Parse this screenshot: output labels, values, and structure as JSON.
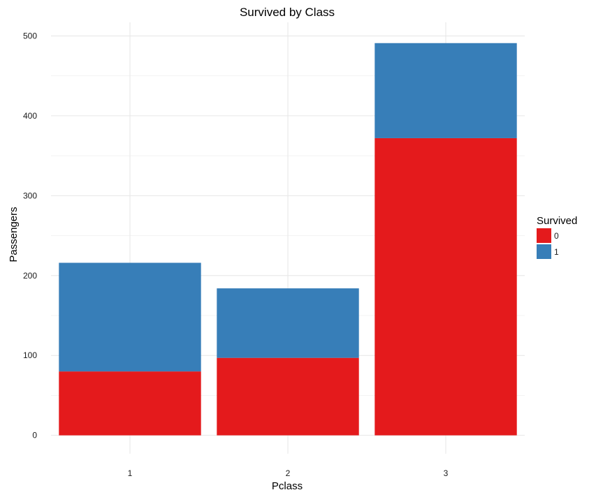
{
  "chart_data": {
    "type": "bar",
    "stacked": true,
    "title": "Survived by Class",
    "xlabel": "Pclass",
    "ylabel": "Passengers",
    "categories": [
      "1",
      "2",
      "3"
    ],
    "series": [
      {
        "name": "0",
        "values": [
          80,
          97,
          372
        ],
        "color": "#E41A1C"
      },
      {
        "name": "1",
        "values": [
          136,
          87,
          119
        ],
        "color": "#377EB8"
      }
    ],
    "ylim": [
      -23,
      517
    ],
    "yticks": [
      0,
      100,
      200,
      300,
      400,
      500
    ],
    "grid": true,
    "legend": {
      "title": "Survived",
      "position": "right"
    }
  }
}
